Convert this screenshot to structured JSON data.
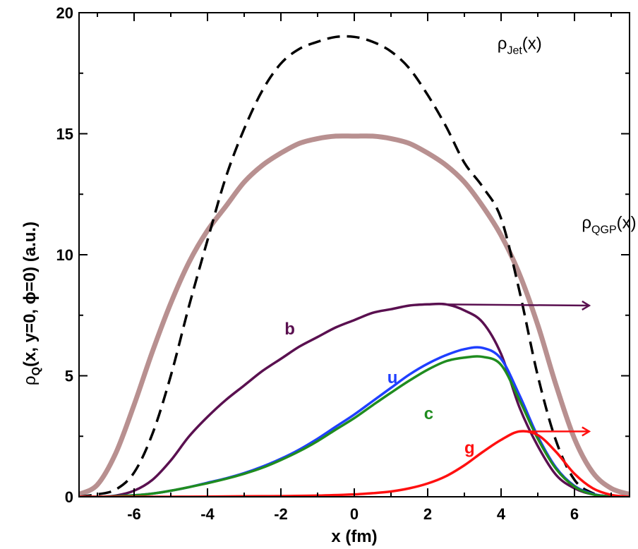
{
  "chart_data": {
    "type": "line",
    "xlabel": "x (fm)",
    "ylabel": {
      "base": "ρ",
      "sub": "Q",
      "rest": "(x, y=0, ϕ=0)  (a.u.)"
    },
    "xlim": [
      -7.5,
      7.5
    ],
    "ylim": [
      0,
      20
    ],
    "xticks": [
      -6,
      -4,
      -2,
      0,
      2,
      4,
      6
    ],
    "yticks": [
      0,
      5,
      10,
      15,
      20
    ],
    "grid": false,
    "series": [
      {
        "name": "QGP",
        "label_base": "ρ",
        "label_sub": "QGP",
        "label_rest": "(x)",
        "color": "#b89090",
        "dash": "solid",
        "x": [
          -7.5,
          -7.0,
          -6.5,
          -6.0,
          -5.5,
          -5.0,
          -4.5,
          -4.0,
          -3.5,
          -3.0,
          -2.5,
          -2.0,
          -1.5,
          -1.0,
          -0.5,
          0.0,
          0.5,
          1.0,
          1.5,
          2.0,
          2.5,
          3.0,
          3.5,
          4.0,
          4.5,
          5.0,
          5.5,
          6.0,
          6.5,
          7.0,
          7.5
        ],
        "y": [
          0.1,
          0.5,
          1.8,
          3.8,
          6.0,
          8.0,
          9.7,
          11.0,
          12.0,
          13.0,
          13.7,
          14.2,
          14.6,
          14.8,
          14.9,
          14.9,
          14.9,
          14.8,
          14.6,
          14.2,
          13.7,
          13.0,
          12.0,
          10.8,
          9.2,
          7.1,
          4.6,
          2.4,
          1.0,
          0.35,
          0.1
        ]
      },
      {
        "name": "Jet",
        "label_base": "ρ",
        "label_sub": "Jet",
        "label_rest": "(x)",
        "color": "#000000",
        "dash": "dashed",
        "x": [
          -7.5,
          -7.0,
          -6.5,
          -6.0,
          -5.5,
          -5.0,
          -4.5,
          -4.0,
          -3.5,
          -3.0,
          -2.5,
          -2.0,
          -1.5,
          -1.0,
          -0.5,
          0.0,
          0.5,
          1.0,
          1.5,
          2.0,
          2.5,
          3.0,
          3.5,
          4.0,
          4.5,
          5.0,
          5.5,
          6.0,
          6.5,
          7.0
        ],
        "y": [
          0.0,
          0.1,
          0.3,
          1.0,
          2.6,
          5.0,
          7.9,
          10.6,
          13.2,
          15.2,
          16.8,
          17.9,
          18.5,
          18.8,
          19.0,
          19.0,
          18.8,
          18.4,
          17.7,
          16.6,
          15.3,
          13.8,
          12.8,
          11.5,
          8.5,
          5.0,
          2.3,
          0.7,
          0.15,
          0.0
        ]
      },
      {
        "name": "b",
        "label": "b",
        "color": "#5a1050",
        "dash": "solid",
        "x": [
          -7.5,
          -7.0,
          -6.5,
          -6.0,
          -5.5,
          -5.0,
          -4.5,
          -4.0,
          -3.5,
          -3.0,
          -2.5,
          -2.0,
          -1.5,
          -1.0,
          -0.5,
          0.0,
          0.5,
          1.0,
          1.5,
          2.0,
          2.5,
          3.0,
          3.5,
          4.0,
          4.5,
          5.0,
          5.5,
          6.0,
          6.5,
          7.0
        ],
        "y": [
          0.0,
          0.0,
          0.05,
          0.25,
          0.7,
          1.5,
          2.5,
          3.3,
          4.0,
          4.6,
          5.2,
          5.7,
          6.2,
          6.6,
          7.0,
          7.3,
          7.6,
          7.75,
          7.9,
          7.95,
          7.95,
          7.7,
          7.2,
          5.9,
          3.7,
          2.1,
          0.9,
          0.35,
          0.1,
          0.0
        ]
      },
      {
        "name": "u",
        "label": "u",
        "color": "#1f3fff",
        "dash": "solid",
        "x": [
          -7.5,
          -7.0,
          -6.5,
          -6.0,
          -5.5,
          -5.0,
          -4.5,
          -4.0,
          -3.5,
          -3.0,
          -2.5,
          -2.0,
          -1.5,
          -1.0,
          -0.5,
          0.0,
          0.5,
          1.0,
          1.5,
          2.0,
          2.5,
          3.0,
          3.5,
          4.0,
          4.5,
          5.0,
          5.5,
          6.0,
          6.5,
          7.0
        ],
        "y": [
          0.0,
          0.0,
          0.02,
          0.06,
          0.13,
          0.25,
          0.4,
          0.58,
          0.76,
          0.98,
          1.25,
          1.57,
          1.95,
          2.4,
          2.9,
          3.4,
          3.95,
          4.5,
          5.05,
          5.5,
          5.85,
          6.1,
          6.15,
          5.7,
          4.2,
          2.5,
          1.2,
          0.45,
          0.12,
          0.0
        ]
      },
      {
        "name": "c",
        "label": "c",
        "color": "#1f8c1f",
        "dash": "solid",
        "x": [
          -7.5,
          -7.0,
          -6.5,
          -6.0,
          -5.5,
          -5.0,
          -4.5,
          -4.0,
          -3.5,
          -3.0,
          -2.5,
          -2.0,
          -1.5,
          -1.0,
          -0.5,
          0.0,
          0.5,
          1.0,
          1.5,
          2.0,
          2.5,
          3.0,
          3.5,
          4.0,
          4.5,
          5.0,
          5.5,
          6.0,
          6.5,
          7.0
        ],
        "y": [
          0.0,
          0.0,
          0.02,
          0.06,
          0.13,
          0.25,
          0.4,
          0.56,
          0.74,
          0.95,
          1.2,
          1.52,
          1.88,
          2.3,
          2.78,
          3.25,
          3.78,
          4.3,
          4.8,
          5.25,
          5.6,
          5.75,
          5.78,
          5.45,
          4.0,
          2.4,
          1.15,
          0.42,
          0.1,
          0.0
        ]
      },
      {
        "name": "g",
        "label": "g",
        "color": "#ff1010",
        "dash": "solid",
        "x": [
          -7.5,
          -6.0,
          -5.0,
          -4.0,
          -3.0,
          -2.0,
          -1.0,
          0.0,
          0.5,
          1.0,
          1.5,
          2.0,
          2.5,
          3.0,
          3.5,
          4.0,
          4.5,
          5.0,
          5.5,
          6.0,
          6.5,
          7.0,
          7.5
        ],
        "y": [
          0.0,
          0.0,
          0.0,
          0.01,
          0.02,
          0.03,
          0.05,
          0.1,
          0.15,
          0.22,
          0.35,
          0.55,
          0.85,
          1.3,
          1.85,
          2.35,
          2.7,
          2.55,
          1.85,
          0.95,
          0.35,
          0.08,
          0.0
        ]
      }
    ],
    "arrows": [
      {
        "series": "b",
        "from": [
          2.4,
          7.95
        ],
        "to": [
          6.4,
          7.9
        ]
      },
      {
        "series": "g",
        "from": [
          4.5,
          2.7
        ],
        "to": [
          6.4,
          2.7
        ]
      }
    ],
    "annotation_positions": {
      "Jet": [
        3.9,
        18.5
      ],
      "QGP": [
        6.2,
        11.1
      ],
      "b": [
        -1.9,
        6.7
      ],
      "u": [
        0.9,
        4.7
      ],
      "c": [
        1.9,
        3.2
      ],
      "g": [
        3.0,
        1.8
      ]
    }
  }
}
